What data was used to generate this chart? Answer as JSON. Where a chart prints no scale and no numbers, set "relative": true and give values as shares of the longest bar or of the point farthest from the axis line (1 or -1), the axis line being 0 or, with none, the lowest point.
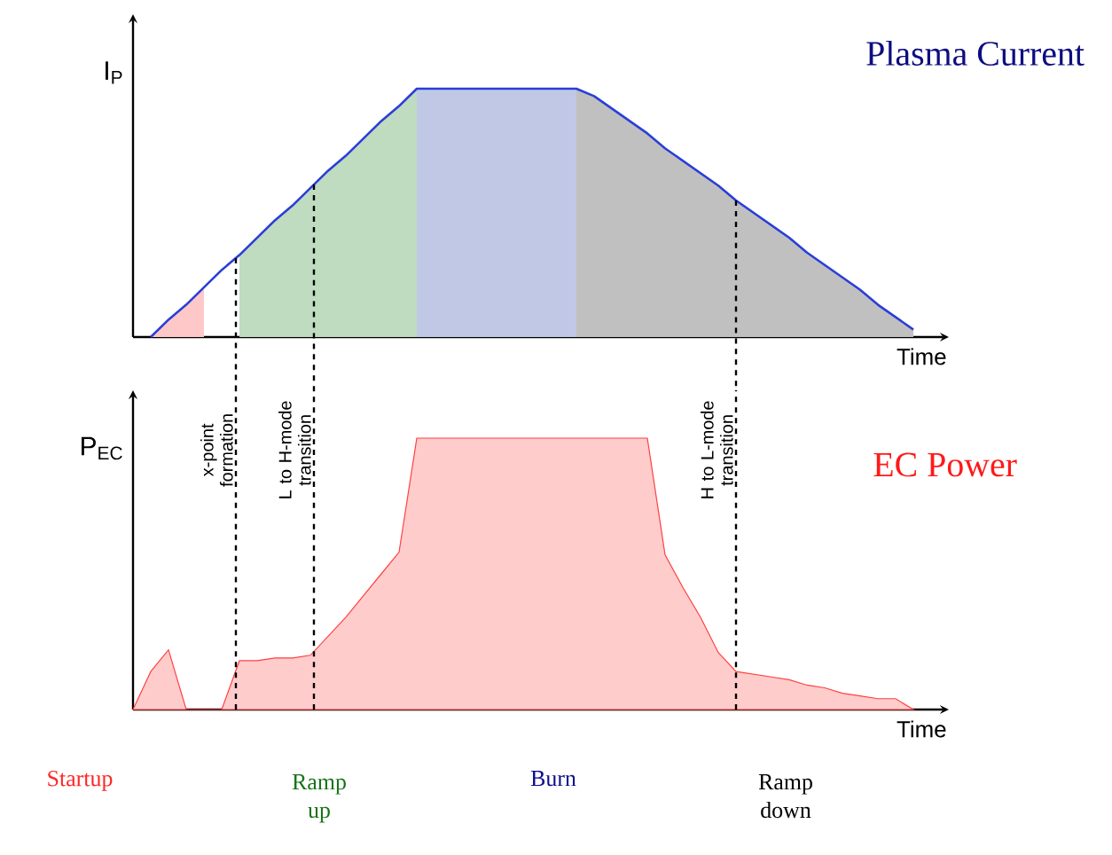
{
  "chart_data": [
    {
      "type": "area",
      "title": "Plasma Current",
      "xlabel": "Time",
      "ylabel": "I$_{P}$",
      "relative": true,
      "categories": [
        null,
        null,
        null,
        null,
        null,
        null,
        null,
        null,
        null,
        null,
        null,
        null,
        null,
        null,
        null,
        null,
        null,
        null,
        null,
        null,
        null,
        null,
        null,
        null,
        null,
        null,
        null,
        null,
        null,
        null,
        null,
        null,
        null,
        null,
        null,
        null,
        null,
        null,
        null,
        null,
        null,
        null,
        null,
        null,
        null
      ],
      "series": [
        {
          "type": "area",
          "color": "#ffc8c8",
          "values": [
            null,
            0,
            0.07,
            0.13,
            0.2,
            null,
            null,
            null,
            null,
            null,
            null,
            null,
            null,
            null,
            null,
            null,
            null,
            null,
            null,
            null,
            null,
            null,
            null,
            null,
            null,
            null,
            null,
            null,
            null,
            null,
            null,
            null,
            null,
            null,
            null,
            null,
            null,
            null,
            null,
            null,
            null,
            null,
            null,
            null,
            null
          ]
        },
        {
          "type": "area",
          "color": "#bfdbc0",
          "values": [
            null,
            null,
            null,
            null,
            null,
            null,
            0.33,
            0.4,
            0.47,
            0.53,
            0.6,
            0.67,
            0.73,
            0.8,
            0.87,
            0.93,
            1,
            null,
            null,
            null,
            null,
            null,
            null,
            null,
            null,
            null,
            null,
            null,
            null,
            null,
            null,
            null,
            null,
            null,
            null,
            null,
            null,
            null,
            null,
            null,
            null,
            null,
            null,
            null,
            null
          ]
        },
        {
          "type": "area",
          "color": "#c0c8e6",
          "values": [
            null,
            null,
            null,
            null,
            null,
            null,
            null,
            null,
            null,
            null,
            null,
            null,
            null,
            null,
            null,
            null,
            1,
            1,
            1,
            1,
            1,
            1,
            1,
            1,
            1,
            1,
            null,
            null,
            null,
            null,
            null,
            null,
            null,
            null,
            null,
            null,
            null,
            null,
            null,
            null,
            null,
            null,
            null,
            null,
            null
          ]
        },
        {
          "type": "area",
          "color": "#c0c0c0",
          "values": [
            null,
            null,
            null,
            null,
            null,
            null,
            null,
            null,
            null,
            null,
            null,
            null,
            null,
            null,
            null,
            null,
            null,
            null,
            null,
            null,
            null,
            null,
            null,
            null,
            null,
            1,
            0.97,
            0.92,
            0.87,
            0.82,
            0.76,
            0.71,
            0.66,
            0.61,
            0.55,
            0.5,
            0.45,
            0.4,
            0.34,
            0.29,
            0.24,
            0.19,
            0.13,
            0.08,
            0.03
          ]
        },
        {
          "type": "line",
          "color": "#2a3ed8",
          "values": [
            null,
            0,
            0.07,
            0.13,
            0.2,
            0.27,
            0.33,
            0.4,
            0.47,
            0.53,
            0.6,
            0.67,
            0.73,
            0.8,
            0.87,
            0.93,
            1,
            1,
            1,
            1,
            1,
            1,
            1,
            1,
            1,
            1,
            0.97,
            0.92,
            0.87,
            0.82,
            0.76,
            0.71,
            0.66,
            0.61,
            0.55,
            0.5,
            0.45,
            0.4,
            0.34,
            0.29,
            0.24,
            0.19,
            0.13,
            0.08,
            0.03
          ]
        }
      ]
    },
    {
      "type": "area",
      "title": "EC Power",
      "xlabel": "Time",
      "ylabel": "P$_{EC}$",
      "relative": true,
      "categories": [
        null,
        null,
        null,
        null,
        null,
        null,
        null,
        null,
        null,
        null,
        null,
        null,
        null,
        null,
        null,
        null,
        null,
        null,
        null,
        null,
        null,
        null,
        null,
        null,
        null,
        null,
        null,
        null,
        null,
        null,
        null,
        null,
        null,
        null,
        null,
        null,
        null,
        null,
        null,
        null,
        null,
        null,
        null,
        null,
        null
      ],
      "series": [
        {
          "color": "#ffcccc",
          "values": [
            0,
            0.14,
            0.22,
            0,
            0,
            0,
            0.18,
            0.18,
            0.19,
            0.19,
            0.2,
            0.27,
            0.34,
            0.42,
            0.5,
            0.58,
            1,
            1,
            1,
            1,
            1,
            1,
            1,
            1,
            1,
            1,
            1,
            1,
            1,
            1,
            0.57,
            0.45,
            0.34,
            0.21,
            0.14,
            0.13,
            0.12,
            0.11,
            0.09,
            0.08,
            0.06,
            0.05,
            0.04,
            0.04,
            0
          ]
        }
      ],
      "annotations": [
        "x-point formation",
        "L to H-mode transition",
        "H to L-mode transition",
        "Startup",
        "Ramp up",
        "Burn",
        "Ramp down"
      ]
    }
  ]
}
